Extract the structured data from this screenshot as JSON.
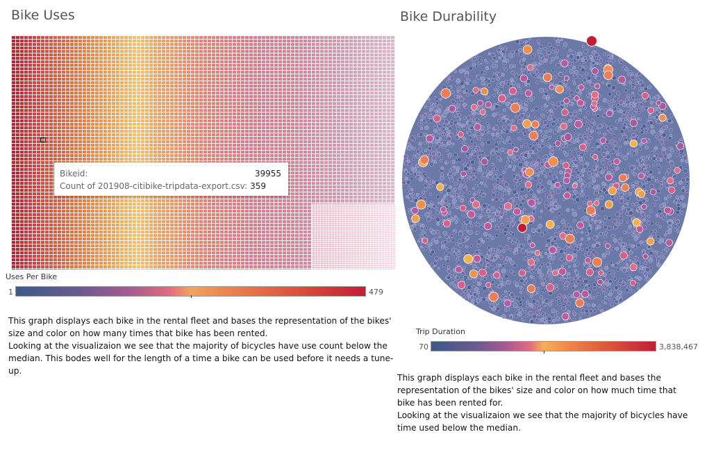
{
  "left_panel": {
    "title": "Bike Uses",
    "tooltip": {
      "label_1": "Bikeid:",
      "value_1": "39955",
      "label_2": "Count of 201908-citibike-tripdata-export.csv:",
      "value_2": "359"
    },
    "legend": {
      "title": "Uses Per Bike",
      "min": "1",
      "max": "479"
    },
    "description": [
      "This graph displays each bike in the rental fleet and bases the representation of the bikes' size and color on how many times that bike has been rented.",
      "Looking at the visualizaion we see that the majority of bicycles have use count below the median. This bodes well for the length of a time a bike can be used before it needs a tune-up."
    ]
  },
  "right_panel": {
    "title": "Bike Durability",
    "legend": {
      "title": "Trip Duration",
      "min": "70",
      "max": "3,838,467"
    },
    "description": [
      "This graph displays each bike in the rental fleet and bases the representation of the bikes' size and color on how much time that bike has been rented for.",
      "Looking at the visualizaion we see that the majority of bicycles have time used below the median."
    ]
  },
  "colors": {
    "low": "#3b5a8a",
    "mid": "#f4b057",
    "high": "#c21d35",
    "bubble_base": "#5a6aa0"
  }
}
